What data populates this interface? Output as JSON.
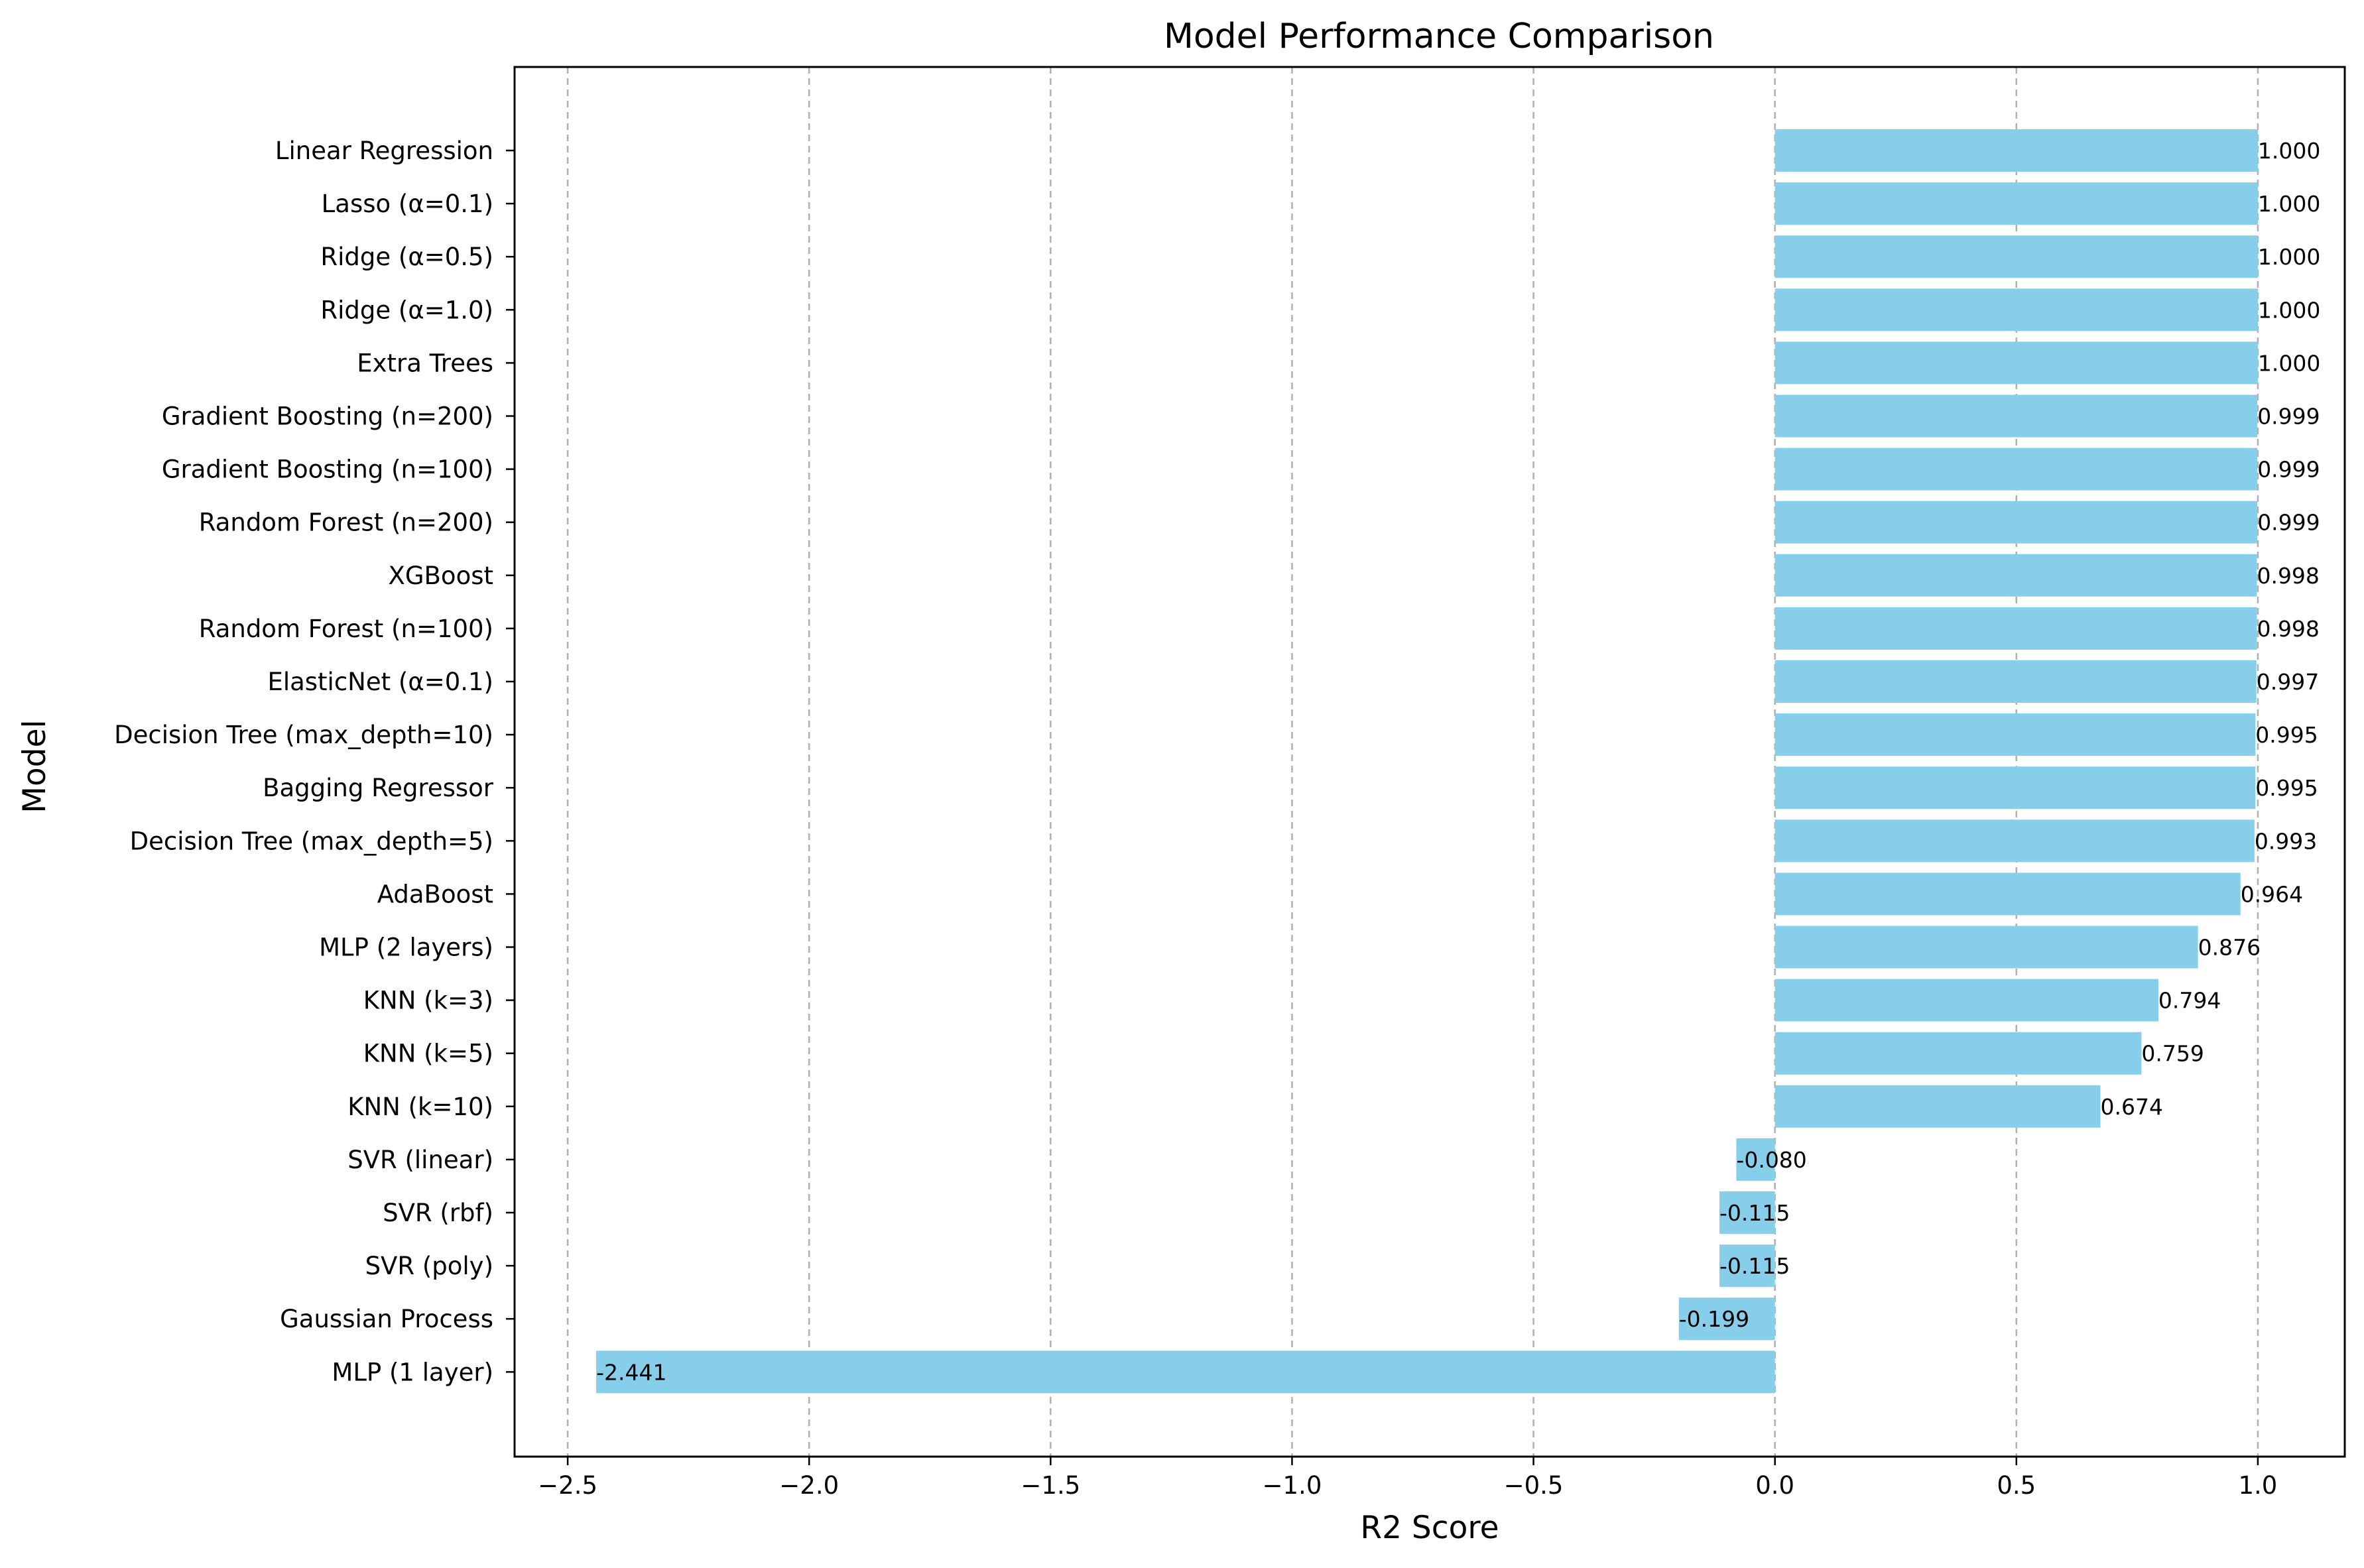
{
  "chart_data": {
    "type": "bar",
    "orientation": "horizontal",
    "title": "Model Performance Comparison",
    "xlabel": "R2 Score",
    "ylabel": "Model",
    "xlim": [
      -2.61,
      1.18
    ],
    "xticks": [
      -2.5,
      -2.0,
      -1.5,
      -1.0,
      -0.5,
      0.0,
      0.5,
      1.0
    ],
    "xtick_labels": [
      "−2.5",
      "−2.0",
      "−1.5",
      "−1.0",
      "−0.5",
      "0.0",
      "0.5",
      "1.0"
    ],
    "grid": "x, dashed",
    "bar_color": "#87ceeb",
    "categories": [
      "Linear Regression",
      "Lasso (α=0.1)",
      "Ridge (α=0.5)",
      "Ridge (α=1.0)",
      "Extra Trees",
      "Gradient Boosting (n=200)",
      "Gradient Boosting (n=100)",
      "Random Forest (n=200)",
      "XGBoost",
      "Random Forest (n=100)",
      "ElasticNet (α=0.1)",
      "Decision Tree (max_depth=10)",
      "Bagging Regressor",
      "Decision Tree (max_depth=5)",
      "AdaBoost",
      "MLP (2 layers)",
      "KNN (k=3)",
      "KNN (k=5)",
      "KNN (k=10)",
      "SVR (linear)",
      "SVR (rbf)",
      "SVR (poly)",
      "Gaussian Process",
      "MLP (1 layer)"
    ],
    "values": [
      1.0,
      1.0,
      1.0,
      1.0,
      1.0,
      0.999,
      0.999,
      0.999,
      0.998,
      0.998,
      0.997,
      0.995,
      0.995,
      0.993,
      0.964,
      0.876,
      0.794,
      0.759,
      0.674,
      -0.08,
      -0.115,
      -0.115,
      -0.199,
      -2.441
    ],
    "value_labels": [
      "1.000",
      "1.000",
      "1.000",
      "1.000",
      "1.000",
      "0.999",
      "0.999",
      "0.999",
      "0.998",
      "0.998",
      "0.997",
      "0.995",
      "0.995",
      "0.993",
      "0.964",
      "0.876",
      "0.794",
      "0.759",
      "0.674",
      "-0.080",
      "-0.115",
      "-0.115",
      "-0.199",
      "-2.441"
    ]
  }
}
